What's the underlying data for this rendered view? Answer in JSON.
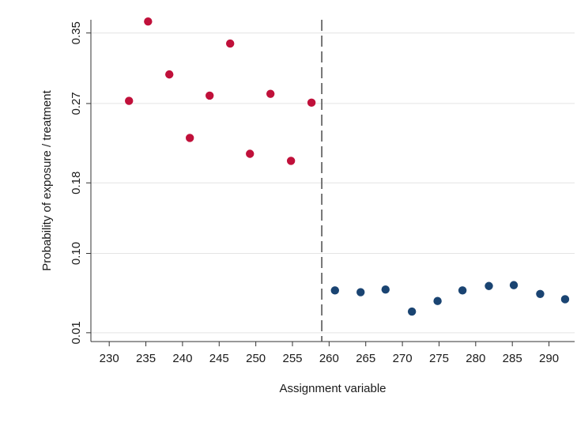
{
  "chart_data": {
    "type": "scatter",
    "title": "",
    "xlabel": "Assignment variable",
    "ylabel": "Probability of exposure / treatment",
    "xlim": [
      227.5,
      293.5
    ],
    "ylim": [
      0.0,
      0.365
    ],
    "x_ticks": [
      230,
      235,
      240,
      245,
      250,
      255,
      260,
      265,
      270,
      275,
      280,
      285,
      290
    ],
    "y_ticks": [
      0.01,
      0.1,
      0.18,
      0.27,
      0.35
    ],
    "y_tick_labels": [
      "0.01",
      "0.10",
      "0.18",
      "0.27",
      "0.35"
    ],
    "grid": "horizontal",
    "cutoff": 259,
    "cutoff_style": "dashed vertical line",
    "series": [
      {
        "color": "#c0103a",
        "x": [
          232.7,
          235.3,
          238.2,
          241.0,
          243.7,
          246.5,
          249.2,
          252.0,
          254.8,
          257.6
        ],
        "y": [
          0.273,
          0.363,
          0.303,
          0.231,
          0.279,
          0.338,
          0.213,
          0.281,
          0.205,
          0.271
        ]
      },
      {
        "color": "#1a4472",
        "x": [
          260.8,
          264.3,
          267.7,
          271.3,
          274.8,
          278.2,
          281.8,
          285.2,
          288.8,
          292.2
        ],
        "y": [
          0.058,
          0.056,
          0.059,
          0.034,
          0.046,
          0.058,
          0.063,
          0.064,
          0.054,
          0.048
        ]
      }
    ]
  }
}
